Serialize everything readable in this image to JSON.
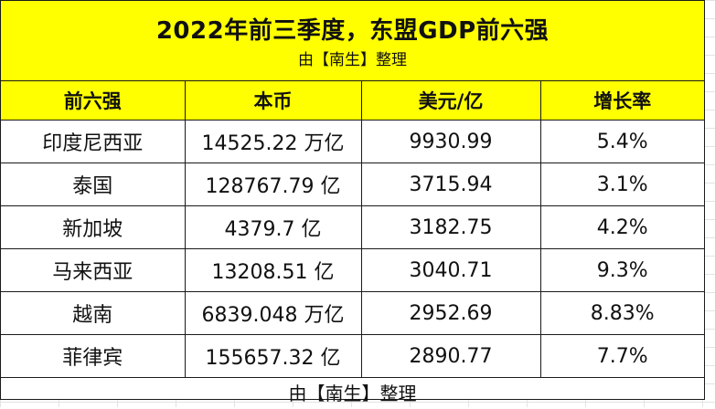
{
  "title": "2022年前三季度，东盟GDP前六强",
  "subtitle": "由【南生】整理",
  "headers": [
    "前六强",
    "本币",
    "美元/亿",
    "增长率"
  ],
  "rows": [
    [
      "印度尼西亚",
      "14525.22 万亿",
      "9930.99",
      "5.4%"
    ],
    [
      "泰国",
      "128767.79 亿",
      "3715.94",
      "3.1%"
    ],
    [
      "新加坡",
      "4379.7 亿",
      "3182.75",
      "4.2%"
    ],
    [
      "马来西亚",
      "13208.51 亿",
      "3040.71",
      "9.3%"
    ],
    [
      "越南",
      "6839.048 万亿",
      "2952.69",
      "8.83%"
    ],
    [
      "菲律宾",
      "155657.32 亿",
      "2890.77",
      "7.7%"
    ]
  ],
  "footer": "由【南生】整理",
  "colors": {
    "header_bg": "#ffff00",
    "border": "#1a1a1a"
  }
}
